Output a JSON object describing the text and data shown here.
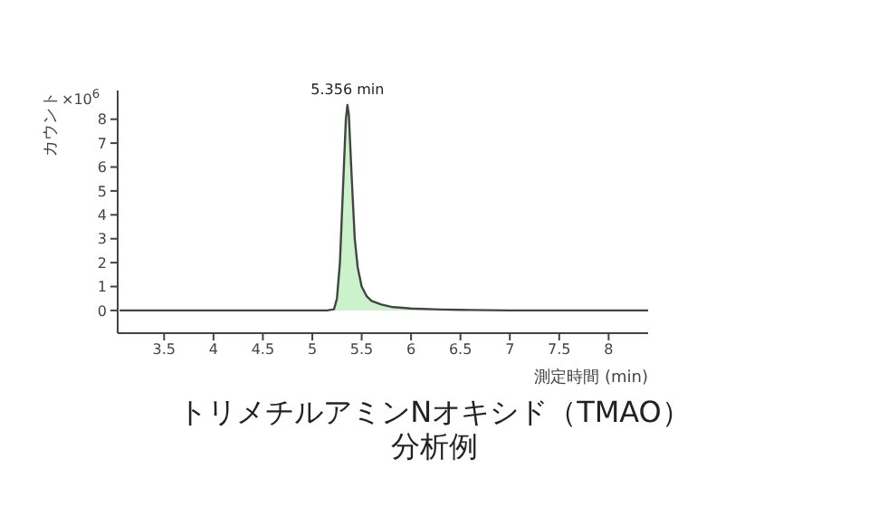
{
  "chart_data": {
    "type": "area",
    "title": "トリメチルアミンNオキシド（TMAO）",
    "subtitle": "分析例",
    "xlabel": "測定時間 (min)",
    "ylabel": "カウント",
    "annotations": [
      "×10$^{6}$",
      {
        "text": "5.356 min",
        "x": 5.356,
        "y": 8.6
      }
    ],
    "x": [
      3.05,
      5.15,
      5.22,
      5.25,
      5.28,
      5.31,
      5.34,
      5.356,
      5.37,
      5.4,
      5.43,
      5.46,
      5.5,
      5.55,
      5.6,
      5.7,
      5.8,
      6.0,
      6.3,
      6.6,
      7.0,
      8.4
    ],
    "series": [
      {
        "color": "#ccf2cc",
        "values": [
          0,
          0,
          0.05,
          0.5,
          2,
          5,
          8,
          8.6,
          8.2,
          5.5,
          3,
          1.8,
          1,
          0.6,
          0.4,
          0.25,
          0.15,
          0.08,
          0.04,
          0.02,
          0,
          0
        ]
      }
    ],
    "xlim": [
      3.03,
      8.4
    ],
    "xticks": [
      3.5,
      4,
      4.5,
      5,
      5.5,
      6,
      6.5,
      7,
      7.5,
      8
    ],
    "ylim": [
      -0.95,
      9.2
    ],
    "yticks": [
      0,
      1,
      2,
      3,
      4,
      5,
      6,
      7,
      8
    ],
    "grid": false,
    "legend": false
  }
}
